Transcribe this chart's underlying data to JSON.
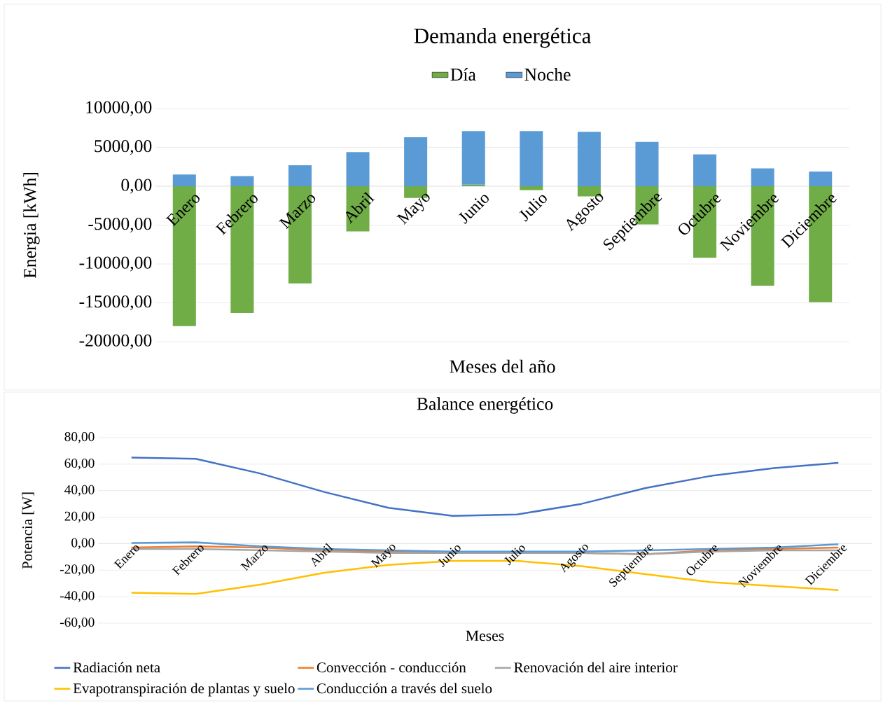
{
  "chart_data": [
    {
      "type": "bar",
      "title": "Demanda energética",
      "xlabel": "Meses del año",
      "ylabel": "Energia [kWh]",
      "stacked": true,
      "grid": "y",
      "legend": "top",
      "categories": [
        "Enero",
        "Febrero",
        "Marzo",
        "Abril",
        "Mayo",
        "Junio",
        "Julio",
        "Agosto",
        "Septiembre",
        "Octubre",
        "Noviembre",
        "Diciembre"
      ],
      "ylim": [
        -20000,
        10000
      ],
      "yticks": [
        {
          "value": -20000,
          "label": "-20000,00"
        },
        {
          "value": -15000,
          "label": "-15000,00"
        },
        {
          "value": -10000,
          "label": "-10000,00"
        },
        {
          "value": -5000,
          "label": "-5000,00"
        },
        {
          "value": 0,
          "label": "0,00"
        },
        {
          "value": 5000,
          "label": "5000,00"
        },
        {
          "value": 10000,
          "label": "10000,00"
        }
      ],
      "series": [
        {
          "name": "Día",
          "color": "#70ad47",
          "values": [
            -18000,
            -16300,
            -12500,
            -5800,
            -1500,
            200,
            -500,
            -1300,
            -4900,
            -9200,
            -12800,
            -14900
          ]
        },
        {
          "name": "Noche",
          "color": "#5b9bd5",
          "values": [
            1500,
            1300,
            2700,
            4400,
            6300,
            6900,
            7100,
            7000,
            5700,
            4100,
            2300,
            1900
          ]
        }
      ]
    },
    {
      "type": "line",
      "title": "Balance energético",
      "xlabel": "Meses",
      "ylabel": "Potencia [W]",
      "grid": "y",
      "legend": "bottom",
      "categories": [
        "Enero",
        "Febrero",
        "Marzo",
        "Abril",
        "Mayo",
        "Junio",
        "Julio",
        "Agosto",
        "Septiembre",
        "Octubre",
        "Noviembre",
        "Diciembre"
      ],
      "ylim": [
        -60,
        80
      ],
      "yticks": [
        {
          "value": -60,
          "label": "-60,00"
        },
        {
          "value": -40,
          "label": "-40,00"
        },
        {
          "value": -20,
          "label": "-20,00"
        },
        {
          "value": 0,
          "label": "0,00"
        },
        {
          "value": 20,
          "label": "20,00"
        },
        {
          "value": 40,
          "label": "40,00"
        },
        {
          "value": 60,
          "label": "60,00"
        },
        {
          "value": 80,
          "label": "80,00"
        }
      ],
      "series": [
        {
          "name": "Radiación neta",
          "color": "#4472c4",
          "values": [
            65,
            64,
            53,
            39,
            27,
            21,
            22,
            30,
            42,
            51,
            57,
            61
          ]
        },
        {
          "name": "Convección - conducción",
          "color": "#ed7d31",
          "values": [
            -3,
            -2,
            -3,
            -5,
            -6,
            -7,
            -7,
            -7,
            -8,
            -5,
            -4,
            -3
          ]
        },
        {
          "name": "Renovación del aire interior",
          "color": "#a5a5a5",
          "values": [
            -4,
            -4,
            -5,
            -6,
            -7,
            -7,
            -7,
            -7,
            -8,
            -6,
            -5,
            -5
          ]
        },
        {
          "name": "Evapotranspiración de plantas y suelo",
          "color": "#ffc000",
          "values": [
            -37,
            -38,
            -31,
            -22,
            -16,
            -13,
            -13,
            -17,
            -23,
            -29,
            -32,
            -35
          ]
        },
        {
          "name": "Conducción a través del suelo",
          "color": "#5b9bd5",
          "values": [
            0.5,
            1,
            -2,
            -4,
            -5,
            -6,
            -6,
            -6,
            -5,
            -4,
            -3,
            -0.5
          ]
        }
      ]
    }
  ]
}
